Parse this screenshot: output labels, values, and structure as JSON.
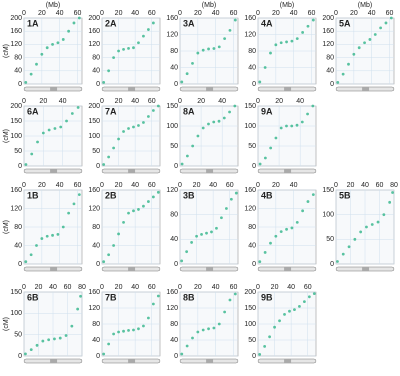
{
  "chart_data": [
    {
      "type": "scatter",
      "label": "1A",
      "xlabel": "(Mb)",
      "ylabel": "(cM)",
      "color": "#3cb98f",
      "grid": true,
      "xlim": [
        0,
        65
      ],
      "xticks": [
        0,
        20,
        40,
        60
      ],
      "ylim": [
        0,
        200
      ],
      "yticks": [
        0,
        40,
        80,
        120,
        160,
        200
      ],
      "x": [
        2,
        8,
        14,
        20,
        26,
        32,
        38,
        44,
        50,
        56,
        62
      ],
      "values": [
        5,
        30,
        60,
        90,
        110,
        120,
        125,
        135,
        160,
        185,
        200
      ]
    },
    {
      "type": "scatter",
      "label": "2A",
      "color": "#3cb98f",
      "grid": true,
      "xlim": [
        0,
        70
      ],
      "xticks": [
        0,
        20,
        40,
        60
      ],
      "ylim": [
        0,
        200
      ],
      "yticks": [
        0,
        40,
        80,
        120,
        160,
        200
      ],
      "x": [
        2,
        8,
        14,
        20,
        26,
        32,
        38,
        44,
        50,
        56,
        62
      ],
      "values": [
        5,
        40,
        80,
        100,
        105,
        108,
        110,
        125,
        145,
        165,
        185
      ]
    },
    {
      "type": "scatter",
      "label": "3A",
      "xlabel": "(Mb)",
      "color": "#3cb98f",
      "grid": true,
      "xlim": [
        0,
        65
      ],
      "xticks": [
        0,
        20,
        40,
        60
      ],
      "ylim": [
        0,
        160
      ],
      "yticks": [
        0,
        40,
        80,
        120,
        160
      ],
      "x": [
        2,
        8,
        14,
        20,
        26,
        32,
        38,
        44,
        50,
        56,
        62
      ],
      "values": [
        5,
        25,
        50,
        75,
        82,
        85,
        86,
        90,
        110,
        130,
        155
      ]
    },
    {
      "type": "scatter",
      "label": "4A",
      "xlabel": "(Mb)",
      "color": "#3cb98f",
      "grid": true,
      "xlim": [
        0,
        65
      ],
      "xticks": [
        0,
        20,
        40,
        60
      ],
      "ylim": [
        0,
        160
      ],
      "yticks": [
        0,
        40,
        80,
        120,
        160
      ],
      "x": [
        2,
        8,
        14,
        20,
        26,
        32,
        38,
        44,
        50,
        56,
        62
      ],
      "values": [
        5,
        40,
        75,
        95,
        100,
        102,
        104,
        110,
        125,
        140,
        155
      ]
    },
    {
      "type": "scatter",
      "label": "5A",
      "xlabel": "(Mb)",
      "color": "#3cb98f",
      "grid": true,
      "xlim": [
        0,
        65
      ],
      "xticks": [
        0,
        20,
        40,
        60
      ],
      "ylim": [
        0,
        200
      ],
      "yticks": [
        0,
        40,
        80,
        120,
        160,
        200
      ],
      "x": [
        2,
        8,
        14,
        20,
        26,
        32,
        38,
        44,
        50,
        56,
        62
      ],
      "values": [
        5,
        30,
        60,
        90,
        110,
        125,
        135,
        150,
        170,
        185,
        200
      ]
    },
    {
      "type": "scatter",
      "label": "6A",
      "ylabel": "(cM)",
      "color": "#3cb98f",
      "grid": true,
      "xlim": [
        0,
        60
      ],
      "xticks": [
        0,
        20,
        40
      ],
      "ylim": [
        0,
        200
      ],
      "yticks": [
        0,
        50,
        100,
        150,
        200
      ],
      "x": [
        2,
        8,
        14,
        20,
        26,
        32,
        38,
        44,
        50,
        56
      ],
      "values": [
        5,
        40,
        80,
        110,
        120,
        125,
        130,
        150,
        175,
        195
      ]
    },
    {
      "type": "scatter",
      "label": "7A",
      "color": "#3cb98f",
      "grid": true,
      "xlim": [
        0,
        70
      ],
      "xticks": [
        0,
        20,
        40,
        60
      ],
      "ylim": [
        0,
        200
      ],
      "yticks": [
        0,
        50,
        100,
        150,
        200
      ],
      "x": [
        2,
        8,
        14,
        20,
        26,
        32,
        38,
        44,
        50,
        56,
        62,
        68
      ],
      "values": [
        5,
        30,
        60,
        90,
        115,
        125,
        130,
        135,
        145,
        165,
        185,
        200
      ]
    },
    {
      "type": "scatter",
      "label": "8A",
      "color": "#3cb98f",
      "grid": true,
      "xlim": [
        0,
        55
      ],
      "xticks": [
        0,
        20,
        40
      ],
      "ylim": [
        0,
        150
      ],
      "yticks": [
        0,
        50,
        100,
        150
      ],
      "x": [
        2,
        7,
        12,
        17,
        22,
        27,
        32,
        37,
        42,
        47,
        52
      ],
      "values": [
        5,
        25,
        50,
        75,
        95,
        105,
        110,
        112,
        120,
        135,
        150
      ]
    },
    {
      "type": "scatter",
      "label": "9A",
      "color": "#3cb98f",
      "grid": true,
      "xlim": [
        0,
        55
      ],
      "xticks": [
        0,
        20,
        40
      ],
      "ylim": [
        0,
        150
      ],
      "yticks": [
        0,
        50,
        100,
        150
      ],
      "x": [
        2,
        7,
        12,
        17,
        22,
        27,
        32,
        37,
        42,
        47,
        52
      ],
      "values": [
        5,
        20,
        45,
        70,
        95,
        100,
        100,
        102,
        110,
        130,
        150
      ]
    },
    {
      "type": "scatter",
      "label": "1B",
      "ylabel": "(cM)",
      "color": "#3cb98f",
      "grid": true,
      "xlim": [
        0,
        65
      ],
      "xticks": [
        0,
        20,
        40,
        60
      ],
      "ylim": [
        0,
        160
      ],
      "yticks": [
        0,
        40,
        80,
        120,
        160
      ],
      "x": [
        2,
        8,
        14,
        20,
        26,
        32,
        38,
        44,
        50,
        56,
        62
      ],
      "values": [
        5,
        20,
        40,
        55,
        60,
        62,
        64,
        80,
        110,
        130,
        150
      ]
    },
    {
      "type": "scatter",
      "label": "2B",
      "color": "#3cb98f",
      "grid": true,
      "xlim": [
        0,
        70
      ],
      "xticks": [
        0,
        20,
        40,
        60
      ],
      "ylim": [
        0,
        160
      ],
      "yticks": [
        0,
        40,
        80,
        120,
        160
      ],
      "x": [
        2,
        8,
        14,
        20,
        26,
        32,
        38,
        44,
        50,
        56,
        62,
        68
      ],
      "values": [
        5,
        20,
        40,
        65,
        90,
        110,
        115,
        118,
        125,
        135,
        145,
        155
      ]
    },
    {
      "type": "scatter",
      "label": "3B",
      "color": "#3cb98f",
      "grid": true,
      "xlim": [
        0,
        70
      ],
      "xticks": [
        0,
        20,
        40,
        60
      ],
      "ylim": [
        0,
        120
      ],
      "yticks": [
        0,
        40,
        80,
        120
      ],
      "x": [
        2,
        8,
        14,
        20,
        26,
        32,
        38,
        44,
        50,
        56,
        62,
        68
      ],
      "values": [
        5,
        20,
        35,
        45,
        48,
        50,
        52,
        58,
        75,
        90,
        105,
        115
      ]
    },
    {
      "type": "scatter",
      "label": "4B",
      "color": "#3cb98f",
      "grid": true,
      "xlim": [
        0,
        65
      ],
      "xticks": [
        0,
        20,
        40
      ],
      "ylim": [
        0,
        160
      ],
      "yticks": [
        0,
        40,
        80,
        120,
        160
      ],
      "x": [
        2,
        8,
        14,
        20,
        26,
        32,
        38,
        44,
        50,
        56,
        62
      ],
      "values": [
        5,
        25,
        45,
        60,
        70,
        75,
        78,
        90,
        115,
        135,
        150
      ]
    },
    {
      "type": "scatter",
      "label": "5B",
      "color": "#3cb98f",
      "grid": true,
      "xlim": [
        0,
        80
      ],
      "xticks": [
        0,
        20,
        40,
        60,
        80
      ],
      "ylim": [
        0,
        150
      ],
      "yticks": [
        0,
        50,
        100,
        150
      ],
      "x": [
        2,
        10,
        18,
        26,
        34,
        42,
        50,
        58,
        66,
        74,
        78
      ],
      "values": [
        5,
        20,
        35,
        50,
        65,
        75,
        80,
        85,
        100,
        125,
        145
      ]
    },
    {
      "type": "scatter",
      "label": "6B",
      "ylabel": "(cM)",
      "color": "#3cb98f",
      "grid": true,
      "xlim": [
        0,
        80
      ],
      "xticks": [
        0,
        20,
        40,
        60,
        80
      ],
      "ylim": [
        0,
        150
      ],
      "yticks": [
        0,
        50,
        100,
        150
      ],
      "x": [
        2,
        10,
        18,
        26,
        34,
        42,
        50,
        58,
        66,
        74,
        78
      ],
      "values": [
        5,
        15,
        25,
        35,
        38,
        40,
        42,
        48,
        70,
        110,
        140
      ]
    },
    {
      "type": "scatter",
      "label": "7B",
      "color": "#3cb98f",
      "grid": true,
      "xlim": [
        0,
        70
      ],
      "xticks": [
        0,
        20,
        40,
        60
      ],
      "ylim": [
        0,
        160
      ],
      "yticks": [
        0,
        40,
        80,
        120,
        160
      ],
      "x": [
        2,
        8,
        14,
        20,
        26,
        32,
        38,
        44,
        50,
        56,
        62,
        68
      ],
      "values": [
        5,
        30,
        55,
        60,
        62,
        64,
        65,
        68,
        75,
        95,
        130,
        150
      ]
    },
    {
      "type": "scatter",
      "label": "8B",
      "color": "#3cb98f",
      "grid": true,
      "xlim": [
        0,
        65
      ],
      "xticks": [
        0,
        20,
        40,
        60
      ],
      "ylim": [
        0,
        160
      ],
      "yticks": [
        0,
        40,
        80,
        120,
        160
      ],
      "x": [
        2,
        8,
        14,
        20,
        26,
        32,
        38,
        44,
        50,
        56,
        62
      ],
      "values": [
        5,
        25,
        45,
        60,
        65,
        68,
        70,
        80,
        110,
        140,
        155
      ]
    },
    {
      "type": "scatter",
      "label": "9B",
      "color": "#3cb98f",
      "grid": true,
      "xlim": [
        0,
        70
      ],
      "xticks": [
        0,
        20,
        40,
        60
      ],
      "ylim": [
        0,
        200
      ],
      "yticks": [
        0,
        50,
        100,
        150,
        200
      ],
      "x": [
        2,
        8,
        14,
        20,
        26,
        32,
        38,
        44,
        50,
        56,
        62,
        68
      ],
      "values": [
        5,
        30,
        60,
        90,
        110,
        130,
        140,
        145,
        155,
        170,
        185,
        195
      ]
    }
  ]
}
